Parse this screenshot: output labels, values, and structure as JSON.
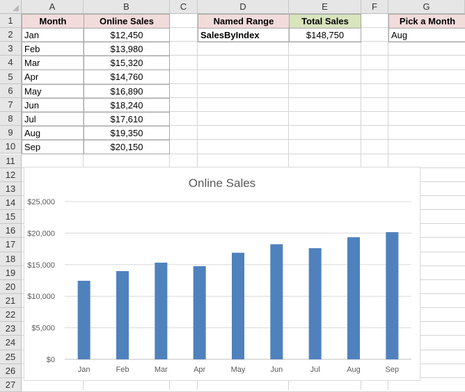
{
  "columns": [
    "A",
    "B",
    "C",
    "D",
    "E",
    "F",
    "G"
  ],
  "rows": [
    "1",
    "2",
    "3",
    "4",
    "5",
    "6",
    "7",
    "8",
    "9",
    "10",
    "11",
    "12",
    "13",
    "14",
    "15",
    "16",
    "17",
    "18",
    "19",
    "20",
    "21",
    "22",
    "23",
    "24",
    "25",
    "26",
    "27"
  ],
  "table": {
    "header_month": "Month",
    "header_sales": "Online Sales",
    "months": [
      "Jan",
      "Feb",
      "Mar",
      "Apr",
      "May",
      "Jun",
      "Jul",
      "Aug",
      "Sep"
    ],
    "sales": [
      "$12,450",
      "$13,980",
      "$15,320",
      "$14,760",
      "$16,890",
      "$18,240",
      "$17,610",
      "$19,350",
      "$20,150"
    ]
  },
  "named_range": {
    "header_name": "Named Range",
    "header_total": "Total Sales",
    "name": "SalesByIndex",
    "total": "$148,750"
  },
  "picker": {
    "header": "Pick a Month",
    "value": "Aug"
  },
  "colors": {
    "header_pink": "#f2dcdb",
    "header_green": "#d8e4bc",
    "bar": "#4f81bd",
    "grid": "#d9d9d9"
  },
  "chart_data": {
    "type": "bar",
    "title": "Online Sales",
    "categories": [
      "Jan",
      "Feb",
      "Mar",
      "Apr",
      "May",
      "Jun",
      "Jul",
      "Aug",
      "Sep"
    ],
    "values": [
      12450,
      13980,
      15320,
      14760,
      16890,
      18240,
      17610,
      19350,
      20150
    ],
    "ylim": [
      0,
      25000
    ],
    "yticks": [
      0,
      5000,
      10000,
      15000,
      20000,
      25000
    ],
    "ytick_labels": [
      "$0",
      "$5,000",
      "$10,000",
      "$15,000",
      "$20,000",
      "$25,000"
    ],
    "grid": true,
    "legend": "none"
  }
}
